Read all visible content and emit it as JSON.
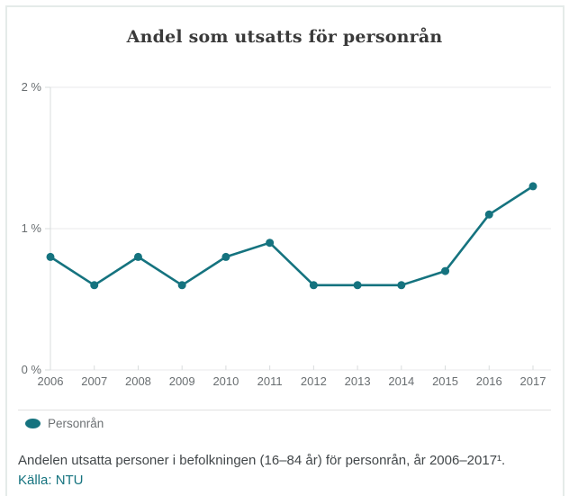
{
  "chart_data": {
    "type": "line",
    "title": "Andel som utsatts för personrån",
    "categories": [
      "2006",
      "2007",
      "2008",
      "2009",
      "2010",
      "2011",
      "2012",
      "2013",
      "2014",
      "2015",
      "2016",
      "2017"
    ],
    "series": [
      {
        "name": "Personrån",
        "color": "#15737f",
        "values": [
          0.8,
          0.6,
          0.8,
          0.6,
          0.8,
          0.9,
          0.6,
          0.6,
          0.6,
          0.7,
          1.1,
          1.3
        ]
      }
    ],
    "xlabel": "",
    "ylabel": "",
    "ylim": [
      0,
      2
    ],
    "yticks": [
      {
        "value": 0,
        "label": "0 %"
      },
      {
        "value": 1,
        "label": "1 %"
      },
      {
        "value": 2,
        "label": "2 %"
      }
    ],
    "grid": true,
    "legend_position": "bottom-left"
  },
  "legend": {
    "items": [
      {
        "label": "Personrån",
        "color": "#15737f"
      }
    ]
  },
  "caption": {
    "text": "Andelen utsatta personer i befolkningen (16–84 år) för personrån, år 2006–2017¹.",
    "source": "Källa: NTU"
  },
  "colors": {
    "accent_teal": "#15737f",
    "card_border": "#e5ebe9",
    "grid_line": "#e8eaeb",
    "axis_line": "#d9dcdd",
    "axis_text": "#696e71",
    "caption_text": "#42474a"
  }
}
